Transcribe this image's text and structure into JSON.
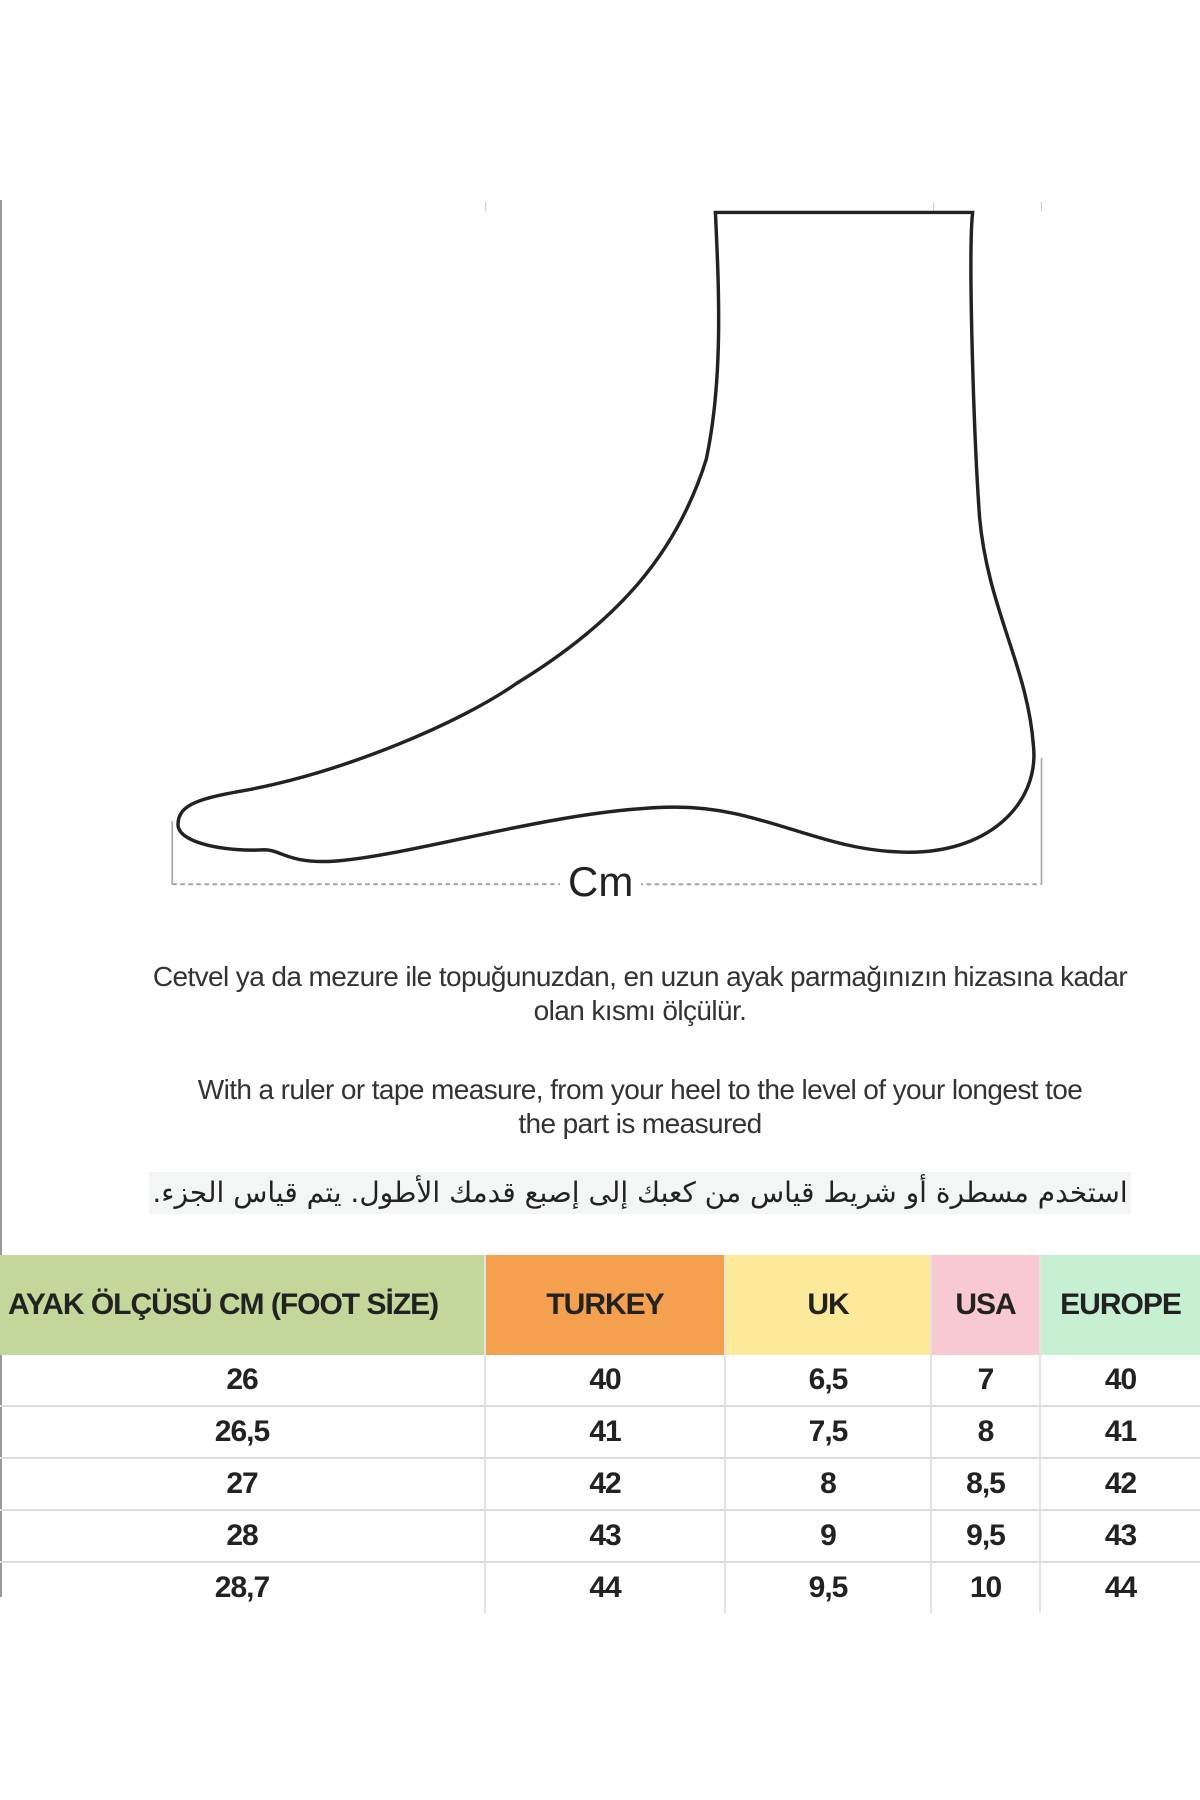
{
  "diagram": {
    "measure_label": "Cm"
  },
  "instructions": {
    "turkish": [
      "Cetvel ya da mezure ile topuğunuzdan, en uzun ayak parmağınızın hizasına kadar",
      "olan kısmı ölçülür."
    ],
    "english": [
      "With a ruler or tape measure, from your heel to the level of your longest toe",
      "the part is measured"
    ],
    "arabic": "استخدم مسطرة أو شريط قياس من  كعبك إلى إصبع قدمك الأطول.  يتم قياس الجزء."
  },
  "size_table": {
    "headers": [
      {
        "label": "AYAK ÖLÇÜSÜ CM (FOOT SİZE)",
        "color": "#c4d79b"
      },
      {
        "label": "TURKEY",
        "color": "#f4a04e"
      },
      {
        "label": "UK",
        "color": "#fde99a"
      },
      {
        "label": "USA",
        "color": "#f9c9d1"
      },
      {
        "label": "EUROPE",
        "color": "#c7efd2"
      }
    ],
    "rows": [
      [
        "26",
        "40",
        "6,5",
        "7",
        "40"
      ],
      [
        "26,5",
        "41",
        "7,5",
        "8",
        "41"
      ],
      [
        "27",
        "42",
        "8",
        "8,5",
        "42"
      ],
      [
        "28",
        "43",
        "9",
        "9,5",
        "43"
      ],
      [
        "28,7",
        "44",
        "9,5",
        "10",
        "44"
      ]
    ]
  }
}
